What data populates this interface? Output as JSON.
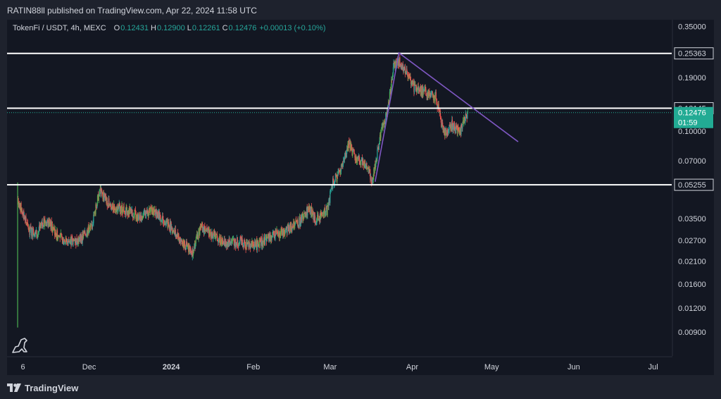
{
  "header": {
    "published_text": "RATIN88ll published on TradingView.com, Apr 22, 2024 11:58 UTC"
  },
  "legend": {
    "symbol": "TokenFi / USDT, 4h, MEXC",
    "open_label": "O",
    "open": "0.12431",
    "high_label": "H",
    "high": "0.12900",
    "low_label": "L",
    "low": "0.12261",
    "close_label": "C",
    "close": "0.12476",
    "change": "+0.00013 (+0.10%)"
  },
  "footer": {
    "brand": "TradingView"
  },
  "colors": {
    "up": "#26a69a",
    "up_bright": "#4caf50",
    "down": "#ef5350",
    "triangle": "#7e57c2",
    "level_line": "#ffffff",
    "price_tag": "#22ab94"
  },
  "chart_data": {
    "type": "candlestick",
    "pair": "TokenFi / USDT",
    "timeframe": "4h",
    "exchange": "MEXC",
    "y_scale": "log",
    "ylim": [
      0.0078,
      0.37
    ],
    "xlim": [
      "2023-10-31",
      "2024-07-08"
    ],
    "x_ticks": [
      {
        "label": "6",
        "date": "2023-11-06"
      },
      {
        "label": "Dec",
        "date": "2023-12-01"
      },
      {
        "label": "2024",
        "date": "2024-01-01"
      },
      {
        "label": "Feb",
        "date": "2024-02-01"
      },
      {
        "label": "Mar",
        "date": "2024-03-01"
      },
      {
        "label": "Apr",
        "date": "2024-04-01"
      },
      {
        "label": "May",
        "date": "2024-05-01"
      },
      {
        "label": "Jun",
        "date": "2024-06-01"
      },
      {
        "label": "Jul",
        "date": "2024-07-01"
      }
    ],
    "y_ticks": [
      "0.35000",
      "0.19000",
      "0.10000",
      "0.07000",
      "0.03500",
      "0.02700",
      "0.02100",
      "0.01600",
      "0.01200",
      "0.00900"
    ],
    "y_tick_values": [
      0.35,
      0.19,
      0.1,
      0.07,
      0.035,
      0.027,
      0.021,
      0.016,
      0.012,
      0.009
    ],
    "horizontal_levels": [
      {
        "value": 0.25363,
        "label": "0.25363"
      },
      {
        "value": 0.13145,
        "label": "0.13145"
      },
      {
        "value": 0.05255,
        "label": "0.05255"
      }
    ],
    "current_price": {
      "value": 0.12476,
      "label": "0.12476",
      "countdown": "01:59"
    },
    "triangle": [
      {
        "date": "2024-03-18",
        "price": 0.0545
      },
      {
        "date": "2024-03-27",
        "price": 0.255
      },
      {
        "date": "2024-05-11",
        "price": 0.088
      }
    ],
    "price_path": [
      {
        "date": "2023-11-04",
        "price": 0.045
      },
      {
        "date": "2023-11-05",
        "price": 0.0405
      },
      {
        "date": "2023-11-08",
        "price": 0.031
      },
      {
        "date": "2023-11-11",
        "price": 0.029
      },
      {
        "date": "2023-11-15",
        "price": 0.035
      },
      {
        "date": "2023-11-19",
        "price": 0.0285
      },
      {
        "date": "2023-11-23",
        "price": 0.0265
      },
      {
        "date": "2023-11-28",
        "price": 0.0275
      },
      {
        "date": "2023-12-02",
        "price": 0.032
      },
      {
        "date": "2023-12-05",
        "price": 0.049
      },
      {
        "date": "2023-12-09",
        "price": 0.041
      },
      {
        "date": "2023-12-15",
        "price": 0.039
      },
      {
        "date": "2023-12-20",
        "price": 0.0355
      },
      {
        "date": "2023-12-25",
        "price": 0.0385
      },
      {
        "date": "2023-12-31",
        "price": 0.033
      },
      {
        "date": "2024-01-05",
        "price": 0.0265
      },
      {
        "date": "2024-01-09",
        "price": 0.0235
      },
      {
        "date": "2024-01-12",
        "price": 0.0315
      },
      {
        "date": "2024-01-16",
        "price": 0.029
      },
      {
        "date": "2024-01-21",
        "price": 0.0265
      },
      {
        "date": "2024-01-27",
        "price": 0.0265
      },
      {
        "date": "2024-02-01",
        "price": 0.025
      },
      {
        "date": "2024-02-06",
        "price": 0.0275
      },
      {
        "date": "2024-02-12",
        "price": 0.03
      },
      {
        "date": "2024-02-18",
        "price": 0.033
      },
      {
        "date": "2024-02-22",
        "price": 0.0395
      },
      {
        "date": "2024-02-25",
        "price": 0.0345
      },
      {
        "date": "2024-02-29",
        "price": 0.039
      },
      {
        "date": "2024-03-02",
        "price": 0.054
      },
      {
        "date": "2024-03-05",
        "price": 0.062
      },
      {
        "date": "2024-03-08",
        "price": 0.085
      },
      {
        "date": "2024-03-11",
        "price": 0.072
      },
      {
        "date": "2024-03-14",
        "price": 0.068
      },
      {
        "date": "2024-03-17",
        "price": 0.056
      },
      {
        "date": "2024-03-20",
        "price": 0.095
      },
      {
        "date": "2024-03-23",
        "price": 0.135
      },
      {
        "date": "2024-03-25",
        "price": 0.215
      },
      {
        "date": "2024-03-27",
        "price": 0.23
      },
      {
        "date": "2024-03-30",
        "price": 0.2
      },
      {
        "date": "2024-04-02",
        "price": 0.165
      },
      {
        "date": "2024-04-06",
        "price": 0.16
      },
      {
        "date": "2024-04-10",
        "price": 0.15
      },
      {
        "date": "2024-04-13",
        "price": 0.095
      },
      {
        "date": "2024-04-16",
        "price": 0.108
      },
      {
        "date": "2024-04-19",
        "price": 0.099
      },
      {
        "date": "2024-04-22",
        "price": 0.1248
      }
    ]
  }
}
